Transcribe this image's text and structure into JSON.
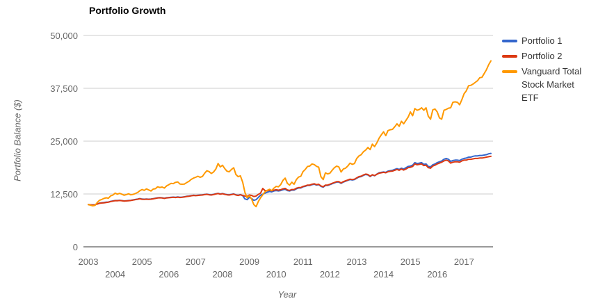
{
  "title": "Portfolio Growth",
  "colors": {
    "portfolio1": "#3366CC",
    "portfolio2": "#DC3912",
    "vti": "#FF9900",
    "gridline": "#CCCCCC",
    "axis_line": "#333333",
    "tick_text": "#666666",
    "legend_text": "#333333"
  },
  "legend": [
    {
      "label": "Portfolio 1",
      "color": "#3366CC"
    },
    {
      "label": "Portfolio 2",
      "color": "#DC3912"
    },
    {
      "label": "Vanguard Total Stock Market ETF",
      "color": "#FF9900"
    }
  ],
  "chart_data": {
    "type": "line",
    "title": "Portfolio Growth",
    "xlabel": "Year",
    "ylabel": "Portfolio Balance ($)",
    "xlim": [
      2003,
      2018
    ],
    "ylim": [
      0,
      50000
    ],
    "grid": "horizontal-only",
    "legend_position": "right",
    "x_start_year": 2003,
    "points_per_year": 12,
    "y_ticks": [
      {
        "value": 0,
        "label": "0"
      },
      {
        "value": 12500,
        "label": "12,500"
      },
      {
        "value": 25000,
        "label": "25,000"
      },
      {
        "value": 37500,
        "label": "37,500"
      },
      {
        "value": 50000,
        "label": "50,000"
      }
    ],
    "x_ticks": [
      {
        "value": 2003,
        "label": "2003"
      },
      {
        "value": 2004,
        "label": "2004"
      },
      {
        "value": 2005,
        "label": "2005"
      },
      {
        "value": 2006,
        "label": "2006"
      },
      {
        "value": 2007,
        "label": "2007"
      },
      {
        "value": 2008,
        "label": "2008"
      },
      {
        "value": 2009,
        "label": "2009"
      },
      {
        "value": 2010,
        "label": "2010"
      },
      {
        "value": 2011,
        "label": "2011"
      },
      {
        "value": 2012,
        "label": "2012"
      },
      {
        "value": 2013,
        "label": "2013"
      },
      {
        "value": 2014,
        "label": "2014"
      },
      {
        "value": 2015,
        "label": "2015"
      },
      {
        "value": 2016,
        "label": "2016"
      },
      {
        "value": 2017,
        "label": "2017"
      }
    ],
    "series": [
      {
        "name": "Portfolio 1",
        "color": "#3366CC",
        "values": [
          10000,
          9950,
          9900,
          9950,
          10150,
          10350,
          10420,
          10480,
          10560,
          10600,
          10760,
          10850,
          10950,
          10960,
          11010,
          10940,
          10860,
          10900,
          10960,
          11010,
          11100,
          11200,
          11300,
          11420,
          11300,
          11260,
          11310,
          11260,
          11310,
          11400,
          11500,
          11600,
          11650,
          11600,
          11500,
          11610,
          11660,
          11710,
          11760,
          11710,
          11800,
          11710,
          11760,
          11850,
          11950,
          12010,
          12110,
          12210,
          12150,
          12210,
          12260,
          12310,
          12400,
          12460,
          12360,
          12310,
          12410,
          12550,
          12650,
          12500,
          12600,
          12460,
          12360,
          12310,
          12410,
          12510,
          12310,
          12210,
          12360,
          12110,
          11350,
          11150,
          11700,
          11450,
          11000,
          11150,
          11700,
          12200,
          12450,
          12700,
          12900,
          13100,
          13000,
          13200,
          13300,
          13210,
          13310,
          13510,
          13610,
          13310,
          13210,
          13410,
          13410,
          13710,
          13910,
          13910,
          14200,
          14310,
          14510,
          14510,
          14710,
          14810,
          14610,
          14710,
          14310,
          14110,
          14510,
          14510,
          14710,
          14910,
          15110,
          15310,
          15310,
          15010,
          15310,
          15510,
          15710,
          15910,
          15810,
          15910,
          16210,
          16510,
          16610,
          16910,
          17110,
          17010,
          16610,
          17010,
          16810,
          17210,
          17510,
          17610,
          17710,
          17610,
          17910,
          18010,
          18110,
          18310,
          18510,
          18310,
          18610,
          18410,
          18710,
          19010,
          19110,
          19310,
          19910,
          19710,
          19810,
          19910,
          19510,
          19610,
          19010,
          18910,
          19410,
          19610,
          19910,
          20110,
          20310,
          20710,
          20910,
          20710,
          20210,
          20410,
          20510,
          20510,
          20410,
          20710,
          20910,
          21010,
          21210,
          21210,
          21410,
          21510,
          21510,
          21610,
          21610,
          21710,
          21810,
          22010,
          22110
        ]
      },
      {
        "name": "Portfolio 2",
        "color": "#DC3912",
        "values": [
          10000,
          9930,
          9870,
          9920,
          10120,
          10300,
          10360,
          10410,
          10500,
          10560,
          10700,
          10800,
          10900,
          10910,
          10960,
          10890,
          10810,
          10850,
          10910,
          10960,
          11050,
          11150,
          11250,
          11370,
          11250,
          11210,
          11260,
          11210,
          11260,
          11350,
          11450,
          11550,
          11600,
          11550,
          11450,
          11560,
          11610,
          11660,
          11710,
          11660,
          11750,
          11660,
          11710,
          11800,
          11900,
          11960,
          12060,
          12160,
          12100,
          12160,
          12210,
          12260,
          12350,
          12410,
          12310,
          12260,
          12360,
          12500,
          12600,
          12450,
          12550,
          12410,
          12310,
          12260,
          12360,
          12460,
          12260,
          12160,
          12310,
          12160,
          12000,
          11900,
          12250,
          12150,
          11900,
          12000,
          12400,
          12700,
          13800,
          13300,
          13250,
          13400,
          13250,
          13400,
          13500,
          13410,
          13510,
          13710,
          13810,
          13460,
          13360,
          13560,
          13560,
          13860,
          14010,
          14010,
          14300,
          14410,
          14610,
          14610,
          14810,
          14910,
          14710,
          14810,
          14410,
          14210,
          14610,
          14610,
          14810,
          15010,
          15210,
          15410,
          15410,
          15110,
          15410,
          15610,
          15810,
          16010,
          15910,
          16010,
          16310,
          16610,
          16710,
          17010,
          17210,
          17110,
          16710,
          17060,
          16860,
          17160,
          17410,
          17510,
          17610,
          17510,
          17760,
          17860,
          17910,
          18110,
          18310,
          18110,
          18410,
          18160,
          18410,
          18710,
          18810,
          19010,
          19610,
          19410,
          19510,
          19610,
          19210,
          19310,
          18710,
          18610,
          19110,
          19310,
          19610,
          19810,
          20010,
          20310,
          20510,
          20310,
          19810,
          20010,
          20110,
          20110,
          20010,
          20310,
          20510,
          20510,
          20710,
          20710,
          20810,
          20910,
          20910,
          21010,
          21010,
          21110,
          21210,
          21310,
          21410
        ]
      },
      {
        "name": "Vanguard Total Stock Market ETF",
        "color": "#FF9900",
        "values": [
          10000,
          9850,
          9700,
          9800,
          10500,
          11000,
          11200,
          11450,
          11600,
          11500,
          12050,
          12250,
          12700,
          12450,
          12650,
          12450,
          12200,
          12350,
          12550,
          12300,
          12400,
          12600,
          12850,
          13250,
          13550,
          13350,
          13700,
          13450,
          13200,
          13650,
          13750,
          14200,
          14050,
          14150,
          13900,
          14400,
          14700,
          15000,
          14950,
          15250,
          15350,
          14850,
          14800,
          14850,
          15200,
          15500,
          15950,
          16250,
          16450,
          16700,
          16450,
          16650,
          17400,
          18000,
          17800,
          17350,
          17700,
          18400,
          19700,
          18900,
          19300,
          18500,
          17900,
          17750,
          18300,
          18700,
          17100,
          16600,
          16800,
          15300,
          12900,
          11600,
          12100,
          11300,
          10000,
          9500,
          10700,
          11600,
          12300,
          13000,
          13350,
          13600,
          13300,
          13900,
          14300,
          14200,
          14700,
          15700,
          16250,
          15000,
          14600,
          15300,
          14800,
          15900,
          16500,
          16700,
          17800,
          18300,
          19000,
          19100,
          19600,
          19450,
          19050,
          18850,
          16600,
          15900,
          17500,
          17250,
          17400,
          18100,
          18700,
          19100,
          18900,
          17700,
          18400,
          18600,
          19100,
          19800,
          19500,
          19700,
          20900,
          21500,
          21800,
          22500,
          22900,
          23500,
          23000,
          24300,
          23700,
          24600,
          25700,
          26500,
          27200,
          26300,
          27500,
          27700,
          27800,
          28400,
          29100,
          28500,
          29700,
          29100,
          29900,
          30700,
          31900,
          31000,
          32700,
          32300,
          32500,
          32900,
          32300,
          32900,
          30900,
          30200,
          32400,
          32600,
          31900,
          30500,
          30200,
          32300,
          32500,
          32800,
          32900,
          34200,
          34300,
          34200,
          33600,
          34800,
          36200,
          36900,
          38100,
          38200,
          38500,
          38900,
          39300,
          40000,
          40100,
          41000,
          41900,
          43100,
          44000
        ]
      }
    ]
  }
}
